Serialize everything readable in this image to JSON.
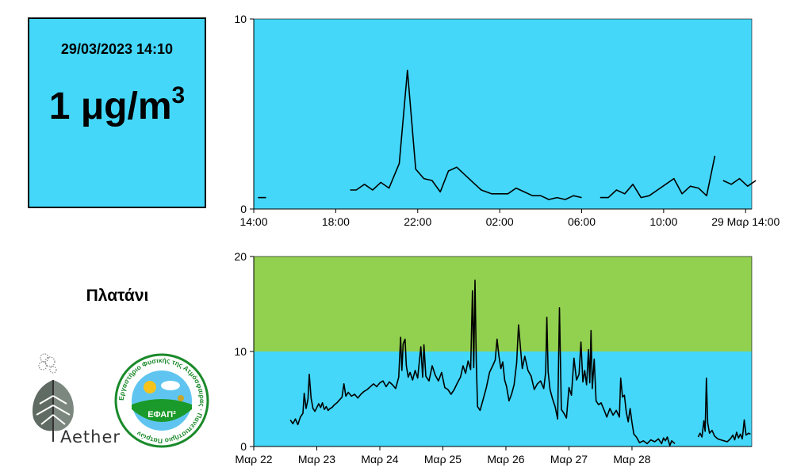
{
  "reading": {
    "timestamp": "29/03/2023 14:10",
    "value": "1 μg/m",
    "unit_superscript": "3"
  },
  "station": "Πλατάνι",
  "logos": {
    "aether_text": "Aether",
    "efap_text": "ΕΦΑΠ²",
    "efap_ring_text": "Εργαστήριο Φυσικής της Ατμόσφαιρας · Πανεπιστήμιο Πατρών"
  },
  "colors": {
    "panel": "#44d7f9",
    "green_band": "#92d050",
    "line": "#000000"
  },
  "chart_data": [
    {
      "type": "line",
      "x_unit": "hours since 28/03 14:00",
      "xlim": [
        0,
        24.3
      ],
      "ylim": [
        0,
        10
      ],
      "yticks": [
        0,
        10
      ],
      "xticks": [
        {
          "x": 0,
          "label": "14:00"
        },
        {
          "x": 4,
          "label": "18:00"
        },
        {
          "x": 8,
          "label": "22:00"
        },
        {
          "x": 12,
          "label": "02:00"
        },
        {
          "x": 16,
          "label": "06:00"
        },
        {
          "x": 20,
          "label": "10:00"
        },
        {
          "x": 24,
          "label": "29 Μαρ 14:00"
        }
      ],
      "segments": [
        [
          [
            0.2,
            0.6
          ],
          [
            0.6,
            0.6
          ]
        ],
        [
          [
            4.7,
            1.0
          ],
          [
            5.0,
            1.0
          ],
          [
            5.4,
            1.3
          ],
          [
            5.8,
            1.0
          ],
          [
            6.2,
            1.4
          ],
          [
            6.6,
            1.1
          ],
          [
            7.1,
            2.4
          ],
          [
            7.5,
            7.3
          ],
          [
            7.9,
            2.1
          ],
          [
            8.3,
            1.6
          ],
          [
            8.7,
            1.5
          ],
          [
            9.1,
            0.9
          ],
          [
            9.5,
            2.0
          ],
          [
            9.9,
            2.2
          ],
          [
            10.3,
            1.8
          ],
          [
            10.7,
            1.4
          ],
          [
            11.1,
            1.0
          ],
          [
            11.6,
            0.8
          ],
          [
            12.0,
            0.8
          ],
          [
            12.4,
            0.8
          ],
          [
            12.8,
            1.1
          ],
          [
            13.2,
            0.9
          ],
          [
            13.6,
            0.7
          ],
          [
            14.0,
            0.7
          ],
          [
            14.4,
            0.5
          ],
          [
            14.8,
            0.6
          ],
          [
            15.2,
            0.5
          ],
          [
            15.6,
            0.7
          ],
          [
            16.0,
            0.6
          ]
        ],
        [
          [
            16.9,
            0.6
          ],
          [
            17.3,
            0.6
          ],
          [
            17.7,
            1.0
          ],
          [
            18.1,
            0.8
          ],
          [
            18.5,
            1.3
          ],
          [
            18.9,
            0.6
          ],
          [
            19.3,
            0.7
          ],
          [
            19.7,
            1.0
          ],
          [
            20.1,
            1.3
          ],
          [
            20.5,
            1.6
          ],
          [
            20.9,
            0.8
          ],
          [
            21.3,
            1.2
          ],
          [
            21.7,
            1.1
          ],
          [
            22.1,
            0.7
          ],
          [
            22.5,
            2.8
          ]
        ],
        [
          [
            22.9,
            1.5
          ],
          [
            23.3,
            1.3
          ],
          [
            23.7,
            1.6
          ],
          [
            24.1,
            1.2
          ],
          [
            24.5,
            1.5
          ]
        ]
      ]
    },
    {
      "type": "line",
      "x_unit": "days since 22 Μαρ 00:00",
      "xlim": [
        0,
        7.9
      ],
      "ylim": [
        0,
        20
      ],
      "yticks": [
        0,
        10,
        20
      ],
      "band": {
        "from": 10,
        "to": 20
      },
      "xticks": [
        {
          "x": 0,
          "label": "Μαρ 22"
        },
        {
          "x": 1,
          "label": "Μαρ 23"
        },
        {
          "x": 2,
          "label": "Μαρ 24"
        },
        {
          "x": 3,
          "label": "Μαρ 25"
        },
        {
          "x": 4,
          "label": "Μαρ 26"
        },
        {
          "x": 5,
          "label": "Μαρ 27"
        },
        {
          "x": 6,
          "label": "Μαρ 28"
        }
      ],
      "segments": [
        [
          [
            0.58,
            2.8
          ],
          [
            0.62,
            2.4
          ],
          [
            0.66,
            2.9
          ],
          [
            0.7,
            2.3
          ],
          [
            0.74,
            3.1
          ],
          [
            0.78,
            3.5
          ],
          [
            0.8,
            5.6
          ],
          [
            0.83,
            4.0
          ],
          [
            0.86,
            5.0
          ],
          [
            0.88,
            7.6
          ],
          [
            0.91,
            5.1
          ],
          [
            0.94,
            4.0
          ],
          [
            0.97,
            3.7
          ],
          [
            1.0,
            4.1
          ],
          [
            1.03,
            4.5
          ],
          [
            1.06,
            4.1
          ],
          [
            1.09,
            4.6
          ],
          [
            1.12,
            3.9
          ],
          [
            1.15,
            4.2
          ],
          [
            1.18,
            3.8
          ],
          [
            1.21,
            4.0
          ],
          [
            1.24,
            4.1
          ],
          [
            1.28,
            4.4
          ],
          [
            1.32,
            4.6
          ],
          [
            1.36,
            4.9
          ],
          [
            1.4,
            5.2
          ],
          [
            1.43,
            6.6
          ],
          [
            1.46,
            5.3
          ],
          [
            1.5,
            5.7
          ],
          [
            1.55,
            5.3
          ],
          [
            1.6,
            5.5
          ],
          [
            1.65,
            5.1
          ],
          [
            1.7,
            5.5
          ],
          [
            1.75,
            5.8
          ],
          [
            1.8,
            6.0
          ],
          [
            1.85,
            6.3
          ],
          [
            1.9,
            6.6
          ],
          [
            1.95,
            6.3
          ],
          [
            2.0,
            6.7
          ],
          [
            2.05,
            6.9
          ],
          [
            2.1,
            6.3
          ],
          [
            2.15,
            6.8
          ],
          [
            2.2,
            6.5
          ],
          [
            2.25,
            6.1
          ],
          [
            2.3,
            7.3
          ],
          [
            2.33,
            11.5
          ],
          [
            2.35,
            8.0
          ],
          [
            2.37,
            10.8
          ],
          [
            2.4,
            11.3
          ],
          [
            2.42,
            8.5
          ],
          [
            2.45,
            7.3
          ],
          [
            2.48,
            7.8
          ],
          [
            2.52,
            7.0
          ],
          [
            2.56,
            8.0
          ],
          [
            2.6,
            7.2
          ],
          [
            2.65,
            10.5
          ],
          [
            2.68,
            7.3
          ],
          [
            2.7,
            10.7
          ],
          [
            2.73,
            7.4
          ],
          [
            2.78,
            6.9
          ],
          [
            2.83,
            8.5
          ],
          [
            2.88,
            7.5
          ],
          [
            2.93,
            6.9
          ],
          [
            2.98,
            7.8
          ],
          [
            3.03,
            6.2
          ],
          [
            3.08,
            6.0
          ],
          [
            3.13,
            5.5
          ],
          [
            3.18,
            6.0
          ],
          [
            3.23,
            6.7
          ],
          [
            3.28,
            7.3
          ],
          [
            3.32,
            8.5
          ],
          [
            3.36,
            7.7
          ],
          [
            3.4,
            9.0
          ],
          [
            3.44,
            8.1
          ],
          [
            3.47,
            16.4
          ],
          [
            3.49,
            8.3
          ],
          [
            3.51,
            17.5
          ],
          [
            3.53,
            9.0
          ],
          [
            3.55,
            4.2
          ],
          [
            3.59,
            3.8
          ],
          [
            3.64,
            5.0
          ],
          [
            3.69,
            6.2
          ],
          [
            3.74,
            7.8
          ],
          [
            3.79,
            8.5
          ],
          [
            3.83,
            9.1
          ],
          [
            3.86,
            11.3
          ],
          [
            3.89,
            9.5
          ],
          [
            3.92,
            8.2
          ],
          [
            3.95,
            8.9
          ],
          [
            3.98,
            7.0
          ],
          [
            4.01,
            6.3
          ],
          [
            4.05,
            4.8
          ],
          [
            4.09,
            5.5
          ],
          [
            4.13,
            6.5
          ],
          [
            4.17,
            8.8
          ],
          [
            4.2,
            12.8
          ],
          [
            4.23,
            10.4
          ],
          [
            4.26,
            8.2
          ],
          [
            4.3,
            9.5
          ],
          [
            4.35,
            8.0
          ],
          [
            4.4,
            7.4
          ],
          [
            4.45,
            6.0
          ],
          [
            4.5,
            6.6
          ],
          [
            4.55,
            6.9
          ],
          [
            4.6,
            6.1
          ],
          [
            4.63,
            7.8
          ],
          [
            4.65,
            13.6
          ],
          [
            4.67,
            7.9
          ],
          [
            4.7,
            6.0
          ],
          [
            4.74,
            5.0
          ],
          [
            4.78,
            4.2
          ],
          [
            4.82,
            2.9
          ],
          [
            4.85,
            14.6
          ],
          [
            4.88,
            3.9
          ],
          [
            4.92,
            3.5
          ],
          [
            4.96,
            3.0
          ],
          [
            5.0,
            6.2
          ],
          [
            5.04,
            5.4
          ],
          [
            5.08,
            9.3
          ],
          [
            5.12,
            7.0
          ],
          [
            5.16,
            7.6
          ],
          [
            5.19,
            11.0
          ],
          [
            5.22,
            6.8
          ],
          [
            5.25,
            8.0
          ],
          [
            5.28,
            6.5
          ],
          [
            5.31,
            10.2
          ],
          [
            5.33,
            6.7
          ],
          [
            5.35,
            12.2
          ],
          [
            5.37,
            6.1
          ],
          [
            5.4,
            9.2
          ],
          [
            5.43,
            4.8
          ],
          [
            5.47,
            4.4
          ],
          [
            5.51,
            4.6
          ],
          [
            5.56,
            3.8
          ],
          [
            5.6,
            3.1
          ],
          [
            5.65,
            4.0
          ],
          [
            5.7,
            3.3
          ],
          [
            5.75,
            3.8
          ],
          [
            5.8,
            3.1
          ],
          [
            5.82,
            7.2
          ],
          [
            5.85,
            5.2
          ],
          [
            5.88,
            5.4
          ],
          [
            5.91,
            3.6
          ],
          [
            5.94,
            2.6
          ],
          [
            5.97,
            4.0
          ],
          [
            6.0,
            2.5
          ],
          [
            6.03,
            1.3
          ],
          [
            6.07,
            1.0
          ],
          [
            6.12,
            0.4
          ],
          [
            6.18,
            0.6
          ],
          [
            6.24,
            0.3
          ],
          [
            6.3,
            0.7
          ],
          [
            6.36,
            0.5
          ],
          [
            6.42,
            0.8
          ],
          [
            6.47,
            0.3
          ],
          [
            6.5,
            0.9
          ],
          [
            6.53,
            0.6
          ],
          [
            6.56,
            1.0
          ],
          [
            6.6,
            0.1
          ],
          [
            6.63,
            0.6
          ],
          [
            6.68,
            0.3
          ]
        ],
        [
          [
            7.05,
            1.0
          ],
          [
            7.08,
            1.4
          ],
          [
            7.11,
            1.0
          ],
          [
            7.14,
            2.7
          ],
          [
            7.16,
            1.6
          ],
          [
            7.18,
            7.2
          ],
          [
            7.2,
            2.5
          ],
          [
            7.23,
            1.4
          ],
          [
            7.27,
            1.7
          ],
          [
            7.31,
            1.1
          ],
          [
            7.36,
            0.8
          ],
          [
            7.41,
            0.7
          ],
          [
            7.46,
            0.6
          ],
          [
            7.51,
            0.5
          ],
          [
            7.56,
            0.8
          ],
          [
            7.6,
            1.2
          ],
          [
            7.63,
            0.7
          ],
          [
            7.66,
            1.5
          ],
          [
            7.69,
            0.9
          ],
          [
            7.72,
            1.3
          ],
          [
            7.75,
            0.8
          ],
          [
            7.78,
            2.8
          ],
          [
            7.81,
            1.2
          ],
          [
            7.85,
            1.4
          ],
          [
            7.88,
            1.3
          ]
        ]
      ]
    }
  ]
}
